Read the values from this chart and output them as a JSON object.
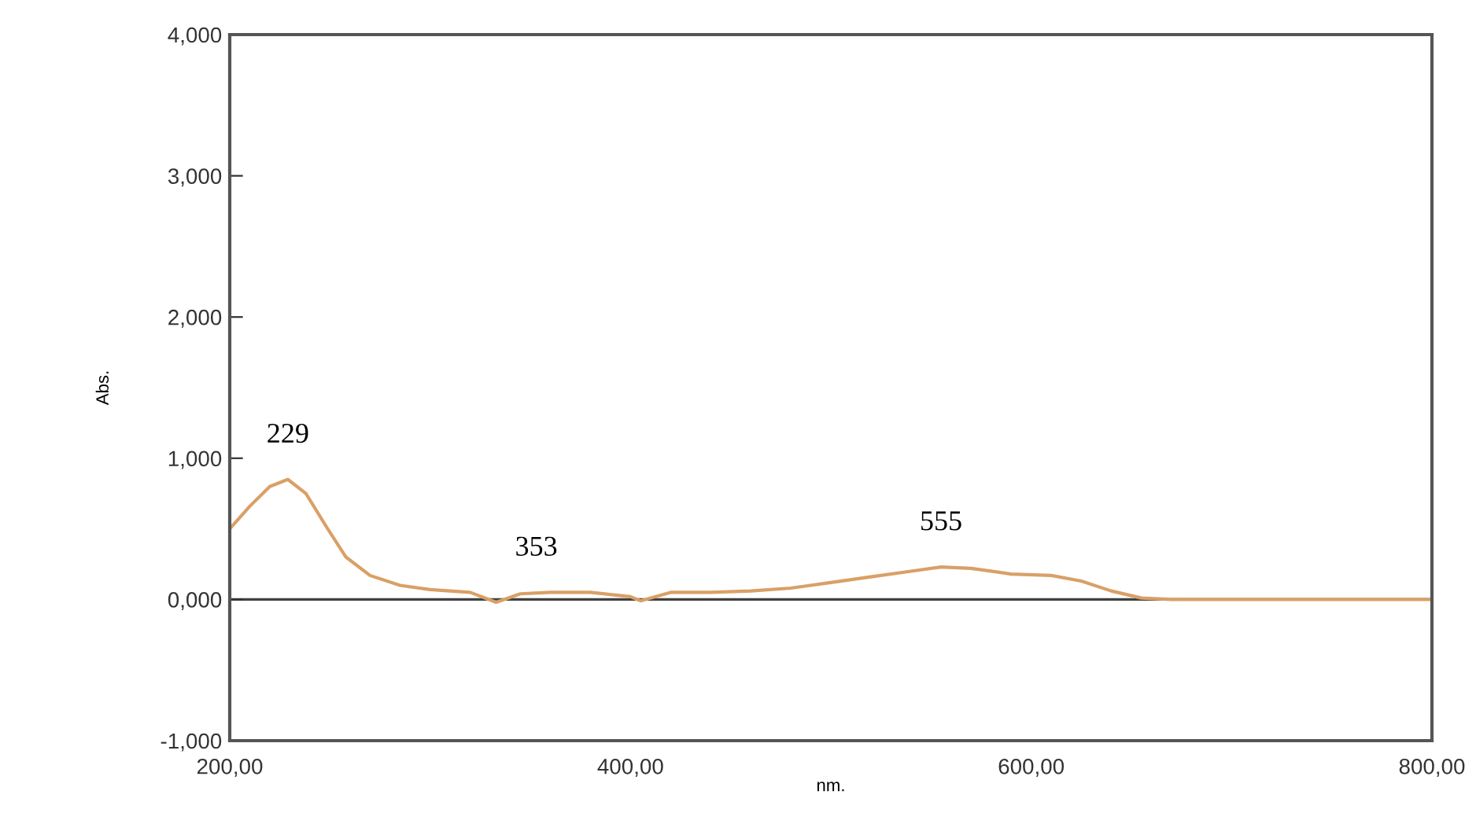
{
  "chart_data": {
    "type": "line",
    "xlabel": "nm.",
    "ylabel": "Abs.",
    "series": [
      {
        "color": "#d9a066",
        "x": [
          200,
          210,
          220,
          229,
          238,
          248,
          258,
          270,
          285,
          300,
          320,
          333,
          345,
          360,
          380,
          400,
          405,
          420,
          440,
          460,
          480,
          500,
          520,
          540,
          555,
          570,
          590,
          610,
          625,
          640,
          655,
          670,
          700,
          750,
          800
        ],
        "values": [
          0.5,
          0.66,
          0.8,
          0.85,
          0.75,
          0.52,
          0.3,
          0.17,
          0.1,
          0.07,
          0.05,
          -0.02,
          0.04,
          0.05,
          0.05,
          0.02,
          -0.01,
          0.05,
          0.05,
          0.06,
          0.08,
          0.12,
          0.16,
          0.2,
          0.23,
          0.22,
          0.18,
          0.17,
          0.13,
          0.06,
          0.01,
          0.0,
          0.0,
          0.0,
          0.0
        ]
      }
    ],
    "annotations": [
      {
        "text": "229",
        "x": 229,
        "y": 0.85
      },
      {
        "text": "353",
        "x": 353,
        "y": 0.05
      },
      {
        "text": "555",
        "x": 555,
        "y": 0.23
      }
    ],
    "ref_lines": [
      {
        "axis": "y",
        "value": 0,
        "color": "#404040"
      }
    ],
    "xlim": [
      200,
      800
    ],
    "ylim": [
      -1,
      4
    ],
    "xticks": [
      {
        "value": 200,
        "label": "200,00"
      },
      {
        "value": 400,
        "label": "400,00"
      },
      {
        "value": 600,
        "label": "600,00"
      },
      {
        "value": 800,
        "label": "800,00"
      }
    ],
    "yticks": [
      {
        "value": -1,
        "label": "-1,000"
      },
      {
        "value": 0,
        "label": "0,000"
      },
      {
        "value": 1,
        "label": "1,000"
      },
      {
        "value": 2,
        "label": "2,000"
      },
      {
        "value": 3,
        "label": "3,000"
      },
      {
        "value": 4,
        "label": "4,000"
      }
    ],
    "grid": false,
    "legend": false
  }
}
